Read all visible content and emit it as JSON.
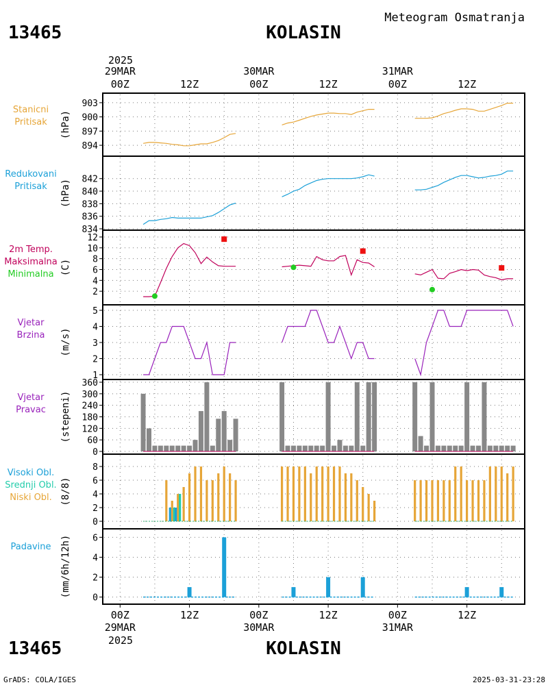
{
  "header": {
    "station_id": "13465",
    "station_name": "KOLASIN",
    "chart_title": "Meteogram Osmatranja"
  },
  "footer": {
    "left_credit": "GrADS: COLA/IGES",
    "timestamp": "2025-03-31-23:28"
  },
  "time_axis": {
    "top_year": "2025",
    "bottom_year": "2025",
    "tick_labels": [
      {
        "t": 0,
        "hour": "00Z",
        "date": "29MAR"
      },
      {
        "t": 12,
        "hour": "12Z",
        "date": ""
      },
      {
        "t": 24,
        "hour": "00Z",
        "date": "30MAR"
      },
      {
        "t": 36,
        "hour": "12Z",
        "date": ""
      },
      {
        "t": 48,
        "hour": "00Z",
        "date": "31MAR"
      },
      {
        "t": 60,
        "hour": "12Z",
        "date": ""
      }
    ],
    "range_hours": [
      -3,
      70
    ]
  },
  "colors": {
    "pressure": "#e6a537",
    "reduced": "#1ba0d8",
    "tmax": "#c0005a",
    "tmin": "#22cc22",
    "max_marker": "#ee1111",
    "wind": "#9922bb",
    "wind_dir_bar": "#888888",
    "cloud_high": "#1ba0d8",
    "cloud_mid": "#22ccaa",
    "cloud_low": "#e6a537",
    "precip": "#1ba0d8"
  },
  "chart_data": [
    {
      "type": "line",
      "panel": "station-pressure",
      "label_lines": [
        "Stanicni",
        "Pritisak"
      ],
      "label_color": "#e6a537",
      "ylabel": "(hPa)",
      "ylim": [
        893,
        904
      ],
      "yticks": [
        894,
        897,
        900,
        903
      ],
      "series": [
        {
          "color": "#e6a537",
          "x": [
            4,
            5,
            6,
            7,
            8,
            9,
            10,
            11,
            12,
            13,
            14,
            15,
            16,
            17,
            18,
            19,
            20
          ],
          "y": [
            894.4,
            894.6,
            894.6,
            894.5,
            894.4,
            894.2,
            894.1,
            893.9,
            893.9,
            894.1,
            894.3,
            894.3,
            894.6,
            895.0,
            895.6,
            896.3,
            896.5
          ]
        },
        {
          "color": "#e6a537",
          "x": [
            28,
            29,
            30,
            31,
            32,
            33,
            34,
            35,
            36,
            37,
            38,
            39,
            40,
            41,
            42,
            43,
            44
          ],
          "y": [
            898.3,
            898.7,
            898.9,
            899.3,
            899.7,
            900.1,
            900.4,
            900.6,
            900.8,
            900.8,
            900.7,
            900.7,
            900.5,
            901.0,
            901.3,
            901.6,
            901.6
          ]
        },
        {
          "color": "#e6a537",
          "x": [
            51,
            52,
            53,
            54,
            55,
            56,
            57,
            58,
            59,
            60,
            61,
            62,
            63,
            64,
            65,
            66,
            67,
            68
          ],
          "y": [
            899.7,
            899.7,
            899.7,
            899.8,
            900.2,
            900.7,
            901.0,
            901.4,
            901.7,
            901.7,
            901.6,
            901.2,
            901.2,
            901.6,
            902.0,
            902.4,
            902.9,
            902.9
          ]
        }
      ]
    },
    {
      "type": "line",
      "panel": "reduced-pressure",
      "label_lines": [
        "Redukovani",
        "Pritisak"
      ],
      "label_color": "#1ba0d8",
      "ylabel": "(hPa)",
      "ylim": [
        834,
        843.5
      ],
      "yticks": [
        834,
        836,
        838,
        840,
        842
      ],
      "series": [
        {
          "color": "#1ba0d8",
          "x": [
            4,
            5,
            6,
            7,
            8,
            9,
            10,
            11,
            12,
            13,
            14,
            15,
            16,
            17,
            18,
            19,
            20
          ],
          "y": [
            834.7,
            835.3,
            835.3,
            835.5,
            835.6,
            835.8,
            835.7,
            835.7,
            835.7,
            835.7,
            835.7,
            835.9,
            836.1,
            836.6,
            837.2,
            837.8,
            838.1
          ]
        },
        {
          "color": "#1ba0d8",
          "x": [
            28,
            29,
            30,
            31,
            32,
            33,
            34,
            35,
            36,
            37,
            38,
            39,
            40,
            41,
            42,
            43,
            44
          ],
          "y": [
            839.1,
            839.5,
            840.0,
            840.3,
            840.9,
            841.3,
            841.7,
            841.9,
            842.0,
            842.0,
            842.0,
            842.0,
            842.0,
            842.1,
            842.3,
            842.6,
            842.4
          ]
        },
        {
          "color": "#1ba0d8",
          "x": [
            51,
            52,
            53,
            54,
            55,
            56,
            57,
            58,
            59,
            60,
            61,
            62,
            63,
            64,
            65,
            66,
            67,
            68
          ],
          "y": [
            840.2,
            840.2,
            840.3,
            840.6,
            840.9,
            841.4,
            841.8,
            842.2,
            842.5,
            842.5,
            842.3,
            842.1,
            842.2,
            842.4,
            842.5,
            842.7,
            843.2,
            843.2
          ]
        }
      ]
    },
    {
      "type": "line",
      "panel": "temperature",
      "label_lines": [
        "2m Temp.",
        "Maksimalna",
        "Minimalna"
      ],
      "label_colors": [
        "#c0005a",
        "#c0005a",
        "#22cc22"
      ],
      "ylabel": "(C)",
      "ylim": [
        0,
        12.5
      ],
      "yticks": [
        2,
        4,
        6,
        8,
        10,
        12
      ],
      "series": [
        {
          "color": "#c0005a",
          "x": [
            4,
            5,
            6,
            7,
            8,
            9,
            10,
            11,
            12,
            13,
            14,
            15,
            16,
            17,
            18,
            19,
            20
          ],
          "y": [
            1.0,
            1.0,
            1.1,
            3.6,
            6.2,
            8.4,
            10.0,
            10.8,
            10.4,
            9.1,
            7.1,
            8.3,
            7.4,
            6.7,
            6.6,
            6.6,
            6.6
          ]
        },
        {
          "color": "#c0005a",
          "x": [
            28,
            29,
            30,
            31,
            32,
            33,
            34,
            35,
            36,
            37,
            38,
            39,
            40,
            41,
            42,
            43,
            44
          ],
          "y": [
            6.5,
            6.6,
            6.7,
            6.8,
            6.7,
            6.6,
            8.4,
            7.8,
            7.6,
            7.6,
            8.4,
            8.6,
            5.0,
            7.8,
            7.3,
            7.2,
            6.5
          ]
        },
        {
          "color": "#c0005a",
          "x": [
            51,
            52,
            53,
            54,
            55,
            56,
            57,
            58,
            59,
            60,
            61,
            62,
            63,
            64,
            65,
            66,
            67,
            68
          ],
          "y": [
            5.2,
            5.0,
            5.5,
            6.0,
            4.4,
            4.3,
            5.3,
            5.6,
            6.0,
            5.8,
            6.0,
            5.9,
            5.0,
            4.7,
            4.5,
            4.1,
            4.3,
            4.3
          ]
        }
      ],
      "max_markers": [
        {
          "t": 18,
          "value": 11.6
        },
        {
          "t": 42,
          "value": 9.4
        },
        {
          "t": 66,
          "value": 6.3
        }
      ],
      "min_markers": [
        {
          "t": 6,
          "value": 1.1
        },
        {
          "t": 30,
          "value": 6.4
        },
        {
          "t": 54,
          "value": 2.3
        }
      ]
    },
    {
      "type": "line",
      "panel": "wind-speed",
      "label_lines": [
        "Vjetar",
        "Brzina"
      ],
      "label_color": "#9922bb",
      "ylabel": "(m/s)",
      "ylim": [
        1,
        5
      ],
      "yticks": [
        1,
        2,
        3,
        4,
        5
      ],
      "series": [
        {
          "color": "#9922bb",
          "x": [
            4,
            5,
            6,
            7,
            8,
            9,
            10,
            11,
            12,
            13,
            14,
            15,
            16,
            17,
            18,
            19,
            20
          ],
          "y": [
            1,
            1,
            2,
            3,
            3,
            4,
            4,
            4,
            3,
            2,
            2,
            3,
            1,
            1,
            1,
            3,
            3
          ]
        },
        {
          "color": "#9922bb",
          "x": [
            28,
            29,
            30,
            31,
            32,
            33,
            34,
            35,
            36,
            37,
            38,
            39,
            40,
            41,
            42,
            43,
            44
          ],
          "y": [
            3,
            4,
            4,
            4,
            4,
            5,
            5,
            4,
            3,
            3,
            4,
            3,
            2,
            3,
            3,
            2,
            2
          ]
        },
        {
          "color": "#9922bb",
          "x": [
            51,
            52,
            53,
            54,
            55,
            56,
            57,
            58,
            59,
            60,
            61,
            62,
            63,
            64,
            65,
            66,
            67,
            68
          ],
          "y": [
            2,
            1,
            3,
            4,
            5,
            5,
            4,
            4,
            4,
            5,
            5,
            5,
            5,
            5,
            5,
            5,
            5,
            4
          ]
        }
      ]
    },
    {
      "type": "bar",
      "panel": "wind-direction",
      "label_lines": [
        "Vjetar",
        "Pravac"
      ],
      "label_color": "#9922bb",
      "ylabel": "(stepeni)",
      "ylim": [
        0,
        360
      ],
      "yticks": [
        0,
        60,
        120,
        180,
        240,
        300,
        360
      ],
      "x": [
        4,
        5,
        6,
        7,
        8,
        9,
        10,
        11,
        12,
        13,
        14,
        15,
        16,
        17,
        18,
        19,
        20,
        28,
        29,
        30,
        31,
        32,
        33,
        34,
        35,
        36,
        37,
        38,
        39,
        40,
        41,
        42,
        43,
        44,
        51,
        52,
        53,
        54,
        55,
        56,
        57,
        58,
        59,
        60,
        61,
        62,
        63,
        64,
        65,
        66,
        67,
        68
      ],
      "values": [
        300,
        120,
        30,
        30,
        30,
        30,
        30,
        30,
        30,
        60,
        210,
        360,
        30,
        170,
        210,
        60,
        170,
        360,
        30,
        30,
        30,
        30,
        30,
        30,
        30,
        360,
        30,
        60,
        30,
        30,
        360,
        30,
        360,
        360,
        360,
        80,
        30,
        360,
        30,
        30,
        30,
        30,
        30,
        360,
        30,
        30,
        360,
        30,
        30,
        30,
        30,
        30
      ]
    },
    {
      "type": "bar",
      "panel": "cloud-cover",
      "label_lines": [
        "Visoki Obl.",
        "Srednji Obl.",
        "Niski Obl."
      ],
      "label_colors": [
        "#1ba0d8",
        "#22ccaa",
        "#e6a537"
      ],
      "ylabel": "(8/8)",
      "ylim": [
        0,
        8.6
      ],
      "yticks": [
        0,
        2,
        4,
        6,
        8
      ],
      "x": [
        8,
        9,
        10,
        11,
        12,
        13,
        14,
        15,
        16,
        17,
        18,
        19,
        20,
        28,
        29,
        30,
        31,
        32,
        33,
        34,
        35,
        36,
        37,
        38,
        39,
        40,
        41,
        42,
        43,
        44,
        51,
        52,
        53,
        54,
        55,
        56,
        57,
        58,
        59,
        60,
        61,
        62,
        63,
        64,
        65,
        66,
        67,
        68
      ],
      "series": [
        {
          "name": "Niski Obl.",
          "values": [
            6,
            3,
            4,
            5,
            7,
            8,
            8,
            6,
            6,
            7,
            8,
            7,
            6,
            8,
            8,
            8,
            8,
            8,
            7,
            8,
            8,
            8,
            8,
            8,
            7,
            7,
            6,
            5,
            4,
            3,
            6,
            6,
            6,
            6,
            6,
            6,
            6,
            8,
            8,
            6,
            6,
            6,
            6,
            8,
            8,
            8,
            7,
            8
          ]
        },
        {
          "name": "Srednji Obl.",
          "values": [
            0,
            2,
            4,
            0,
            0,
            0,
            0,
            0,
            0,
            0,
            0,
            0,
            0,
            0,
            0,
            0,
            0,
            0,
            0,
            0,
            0,
            0,
            0,
            0,
            0,
            0,
            0,
            0,
            0,
            0,
            0,
            0,
            0,
            0,
            0,
            0,
            0,
            0,
            0,
            0,
            0,
            0,
            0,
            0,
            0,
            0,
            0,
            0
          ]
        },
        {
          "name": "Visoki Obl.",
          "values": [
            0,
            2,
            2,
            0,
            0,
            0,
            0,
            0,
            0,
            0,
            0,
            0,
            0,
            0,
            0,
            0,
            0,
            0,
            0,
            0,
            0,
            0,
            0,
            0,
            0,
            0,
            0,
            0,
            0,
            0,
            0,
            0,
            0,
            0,
            0,
            0,
            0,
            0,
            0,
            0,
            0,
            0,
            0,
            0,
            0,
            0,
            0,
            0
          ]
        }
      ]
    },
    {
      "type": "bar",
      "panel": "precipitation",
      "label_lines": [
        "Padavine"
      ],
      "label_color": "#1ba0d8",
      "ylabel": "(mm/6h/12h)",
      "ylim": [
        -0.3,
        6.3
      ],
      "yticks": [
        0,
        2,
        4,
        6
      ],
      "x": [
        12,
        18,
        30,
        36,
        42,
        60,
        66
      ],
      "values": [
        1.0,
        6.0,
        1.0,
        2.0,
        2.0,
        1.0,
        1.0
      ],
      "baseline_segments": [
        [
          4,
          20
        ],
        [
          28,
          44
        ],
        [
          51,
          68
        ]
      ]
    }
  ]
}
